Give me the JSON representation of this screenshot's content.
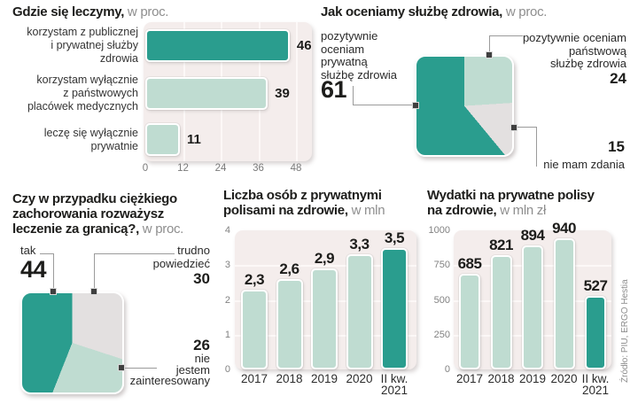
{
  "colors": {
    "teal": "#2A9D8E",
    "mint": "#BFDCD1",
    "gray": "#E3E0E0",
    "panel_bg": "#F4EDEC",
    "gridline": "#FCF8F7",
    "text_dark": "#1D1D1B",
    "text_gray": "#8E8E8E",
    "connector": "#9B9B9B",
    "marker": "#3F3F3F"
  },
  "source_note": "Źródło: PIU, ERGO Hestia",
  "chart_data": [
    {
      "id": "gdzie-sie-leczymy",
      "type": "bar",
      "orientation": "horizontal",
      "title_lines": [
        {
          "bold": "Gdzie się leczymy,",
          "rest": " w proc."
        }
      ],
      "categories": [
        [
          "korzystam z publicznej",
          "i prywatnej służby",
          "zdrowia"
        ],
        [
          "korzystam wyłącznie",
          "z państwowych",
          "placówek medycznych"
        ],
        [
          "leczę się wyłącznie",
          "prywatnie"
        ]
      ],
      "values": [
        46,
        39,
        11
      ],
      "value_labels": [
        "46",
        "39",
        "11"
      ],
      "bar_colors": [
        "teal",
        "mint",
        "mint"
      ],
      "x_ticks": [
        0,
        12,
        24,
        36,
        48
      ],
      "xlim": [
        0,
        48
      ]
    },
    {
      "id": "jak-oceniamy-sluzbe-zdrowia",
      "type": "pie",
      "variant": "square",
      "start_angle_deg": 0,
      "title_lines": [
        {
          "bold": "Jak oceniamy służbę zdrowia,",
          "rest": " w proc."
        }
      ],
      "slices": [
        {
          "value": 24,
          "color": "mint",
          "label_lines": [
            "pozytywnie oceniam",
            "państwową",
            "służbę zdrowia"
          ]
        },
        {
          "value": 15,
          "color": "gray",
          "label_lines": [
            "nie mam zdania"
          ]
        },
        {
          "value": 61,
          "color": "teal",
          "label_lines": [
            "pozytywnie",
            "oceniam",
            "prywatną",
            "służbę zdrowia"
          ]
        }
      ]
    },
    {
      "id": "leczenie-za-granica",
      "type": "pie",
      "variant": "square",
      "start_angle_deg": 0,
      "title_lines": [
        {
          "bold": "Czy w przypadku ciężkiego"
        },
        {
          "bold": "zachorowania rozważysz"
        },
        {
          "bold": "leczenie za granicą?,",
          "rest": " w proc."
        }
      ],
      "slices": [
        {
          "value": 30,
          "color": "gray",
          "label_lines": [
            "trudno",
            "powiedzieć"
          ]
        },
        {
          "value": 26,
          "color": "mint",
          "label_lines": [
            "nie",
            "jestem",
            "zainteresowany"
          ]
        },
        {
          "value": 44,
          "color": "teal",
          "label_lines": [
            "tak"
          ]
        }
      ]
    },
    {
      "id": "liczba-osob-z-polisami",
      "type": "bar",
      "orientation": "vertical",
      "title_lines": [
        {
          "bold": "Liczba osób z prywatnymi"
        },
        {
          "bold": "polisami na zdrowie,",
          "rest": " w mln"
        }
      ],
      "categories": [
        [
          "2017"
        ],
        [
          "2018"
        ],
        [
          "2019"
        ],
        [
          "2020"
        ],
        [
          "II kw.",
          "2021"
        ]
      ],
      "values": [
        2.3,
        2.6,
        2.9,
        3.3,
        3.5
      ],
      "value_labels": [
        "2,3",
        "2,6",
        "2,9",
        "3,3",
        "3,5"
      ],
      "bar_colors": [
        "mint",
        "mint",
        "mint",
        "mint",
        "teal"
      ],
      "y_ticks": [
        4,
        3,
        2,
        1,
        0
      ],
      "ylim": [
        0,
        4
      ]
    },
    {
      "id": "wydatki-na-polisy",
      "type": "bar",
      "orientation": "vertical",
      "title_lines": [
        {
          "bold": "Wydatki na prywatne polisy"
        },
        {
          "bold": "na zdrowie,",
          "rest": " w mln zł"
        }
      ],
      "categories": [
        [
          "2017"
        ],
        [
          "2018"
        ],
        [
          "2019"
        ],
        [
          "2020"
        ],
        [
          "II kw.",
          "2021"
        ]
      ],
      "values": [
        685,
        821,
        894,
        940,
        527
      ],
      "value_labels": [
        "685",
        "821",
        "894",
        "940",
        "527"
      ],
      "bar_colors": [
        "mint",
        "mint",
        "mint",
        "mint",
        "teal"
      ],
      "y_ticks": [
        1000,
        750,
        500,
        250,
        0
      ],
      "ylim": [
        0,
        1000
      ]
    }
  ]
}
